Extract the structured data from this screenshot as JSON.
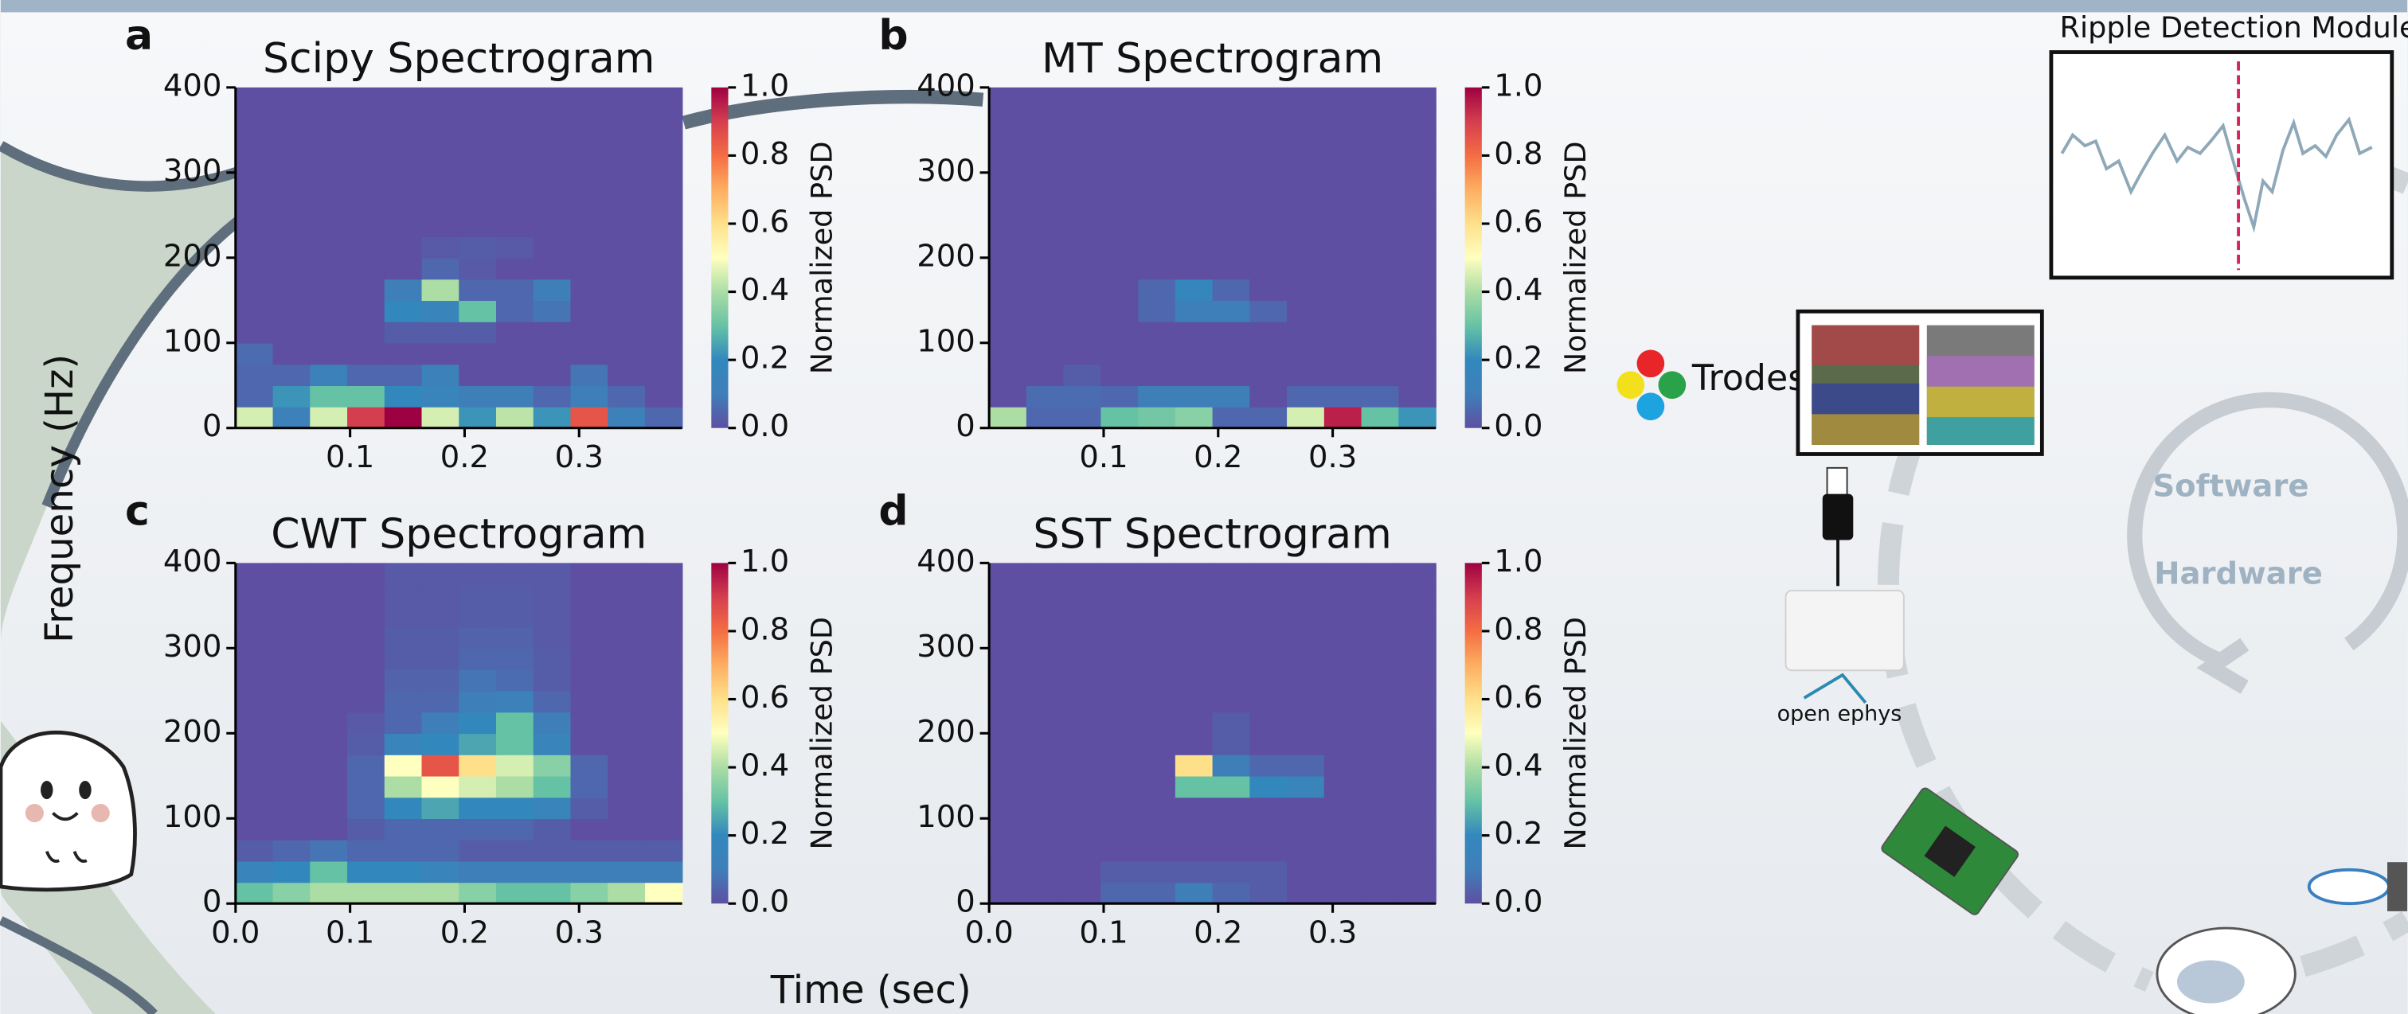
{
  "chart_data": [
    {
      "type": "heatmap",
      "panel": "a",
      "title": "Scipy Spectrogram",
      "colormap": "Spectral_r",
      "xlim": [
        0,
        0.39
      ],
      "ylim": [
        0,
        400
      ],
      "xticks": [
        0.1,
        0.2,
        0.3
      ],
      "yticks": [
        0,
        100,
        200,
        300,
        400
      ],
      "zlim": [
        0,
        1
      ],
      "zticks": [
        {
          "value": 0,
          "label": "0.0"
        },
        0.2,
        0.4,
        0.6,
        0.8,
        {
          "value": 1,
          "label": "1.0"
        }
      ],
      "colorbar_label": "Normalized PSD",
      "z": [
        [
          0.45,
          0.12,
          0.45,
          0.9,
          1.0,
          0.45,
          0.22,
          0.42,
          0.22,
          0.85,
          0.12,
          0.05
        ],
        [
          0.05,
          0.22,
          0.3,
          0.3,
          0.2,
          0.15,
          0.1,
          0.1,
          0.05,
          0.1,
          0.05,
          0
        ],
        [
          0.05,
          0.05,
          0.12,
          0.05,
          0.05,
          0.12,
          0,
          0,
          0,
          0.08,
          0,
          0
        ],
        [
          0.06,
          0,
          0,
          0,
          0,
          0,
          0,
          0,
          0,
          0,
          0,
          0
        ],
        [
          0,
          0,
          0,
          0,
          0.03,
          0.03,
          0.03,
          0,
          0,
          0,
          0,
          0
        ],
        [
          0,
          0,
          0,
          0,
          0.2,
          0.15,
          0.3,
          0.05,
          0.08,
          0,
          0,
          0
        ],
        [
          0,
          0,
          0,
          0,
          0.1,
          0.4,
          0.05,
          0.05,
          0.1,
          0,
          0,
          0
        ],
        [
          0,
          0,
          0,
          0,
          0,
          0.05,
          0.02,
          0,
          0,
          0,
          0,
          0
        ],
        [
          0,
          0,
          0,
          0,
          0,
          0.02,
          0.03,
          0.02,
          0,
          0,
          0,
          0
        ],
        [
          0,
          0,
          0,
          0,
          0,
          0,
          0,
          0,
          0,
          0,
          0,
          0
        ],
        [
          0,
          0,
          0,
          0,
          0,
          0,
          0,
          0,
          0,
          0,
          0,
          0
        ],
        [
          0,
          0,
          0,
          0,
          0,
          0,
          0,
          0,
          0,
          0,
          0,
          0
        ],
        [
          0,
          0,
          0,
          0,
          0,
          0,
          0,
          0,
          0,
          0,
          0,
          0
        ],
        [
          0,
          0,
          0,
          0,
          0,
          0,
          0,
          0,
          0,
          0,
          0,
          0
        ],
        [
          0,
          0,
          0,
          0,
          0,
          0,
          0,
          0,
          0,
          0,
          0,
          0
        ],
        [
          0,
          0,
          0,
          0,
          0,
          0,
          0,
          0,
          0,
          0,
          0,
          0
        ]
      ]
    },
    {
      "type": "heatmap",
      "panel": "b",
      "title": "MT Spectrogram",
      "colormap": "Spectral_r",
      "xlim": [
        0,
        0.39
      ],
      "ylim": [
        0,
        400
      ],
      "xticks": [
        0.1,
        0.2,
        0.3
      ],
      "yticks": [
        0,
        100,
        200,
        300,
        400
      ],
      "zlim": [
        0,
        1
      ],
      "zticks": [
        {
          "value": 0,
          "label": "0.0"
        },
        0.2,
        0.4,
        0.6,
        0.8,
        {
          "value": 1,
          "label": "1.0"
        }
      ],
      "colorbar_label": "Normalized PSD",
      "z": [
        [
          0.4,
          0.05,
          0.05,
          0.3,
          0.32,
          0.35,
          0.05,
          0.05,
          0.45,
          0.95,
          0.3,
          0.22
        ],
        [
          0,
          0.06,
          0.06,
          0.05,
          0.1,
          0.1,
          0.1,
          0,
          0.05,
          0.05,
          0.05,
          0
        ],
        [
          0,
          0,
          0.03,
          0,
          0,
          0,
          0,
          0,
          0,
          0,
          0,
          0
        ],
        [
          0,
          0,
          0,
          0,
          0,
          0,
          0,
          0,
          0,
          0,
          0,
          0
        ],
        [
          0,
          0,
          0,
          0,
          0,
          0,
          0,
          0,
          0,
          0,
          0,
          0
        ],
        [
          0,
          0,
          0,
          0,
          0.05,
          0.1,
          0.1,
          0.05,
          0,
          0,
          0,
          0
        ],
        [
          0,
          0,
          0,
          0,
          0.05,
          0.18,
          0.05,
          0,
          0,
          0,
          0,
          0
        ],
        [
          0,
          0,
          0,
          0,
          0,
          0,
          0,
          0,
          0,
          0,
          0,
          0
        ],
        [
          0,
          0,
          0,
          0,
          0,
          0,
          0,
          0,
          0,
          0,
          0,
          0
        ],
        [
          0,
          0,
          0,
          0,
          0,
          0,
          0,
          0,
          0,
          0,
          0,
          0
        ],
        [
          0,
          0,
          0,
          0,
          0,
          0,
          0,
          0,
          0,
          0,
          0,
          0
        ],
        [
          0,
          0,
          0,
          0,
          0,
          0,
          0,
          0,
          0,
          0,
          0,
          0
        ],
        [
          0,
          0,
          0,
          0,
          0,
          0,
          0,
          0,
          0,
          0,
          0,
          0
        ],
        [
          0,
          0,
          0,
          0,
          0,
          0,
          0,
          0,
          0,
          0,
          0,
          0
        ],
        [
          0,
          0,
          0,
          0,
          0,
          0,
          0,
          0,
          0,
          0,
          0,
          0
        ],
        [
          0,
          0,
          0,
          0,
          0,
          0,
          0,
          0,
          0,
          0,
          0,
          0
        ]
      ]
    },
    {
      "type": "heatmap",
      "panel": "c",
      "title": "CWT Spectrogram",
      "colormap": "Spectral_r",
      "xlim": [
        0,
        0.39
      ],
      "ylim": [
        0,
        400
      ],
      "xticks": [
        {
          "value": 0,
          "label": "0.0"
        },
        0.1,
        0.2,
        0.3
      ],
      "yticks": [
        0,
        100,
        200,
        300,
        400
      ],
      "zlim": [
        0,
        1
      ],
      "zticks": [
        {
          "value": 0,
          "label": "0.0"
        },
        0.2,
        0.4,
        0.6,
        0.8,
        {
          "value": 1,
          "label": "1.0"
        }
      ],
      "colorbar_label": "Normalized PSD",
      "z": [
        [
          0.3,
          0.35,
          0.4,
          0.4,
          0.4,
          0.4,
          0.35,
          0.3,
          0.3,
          0.35,
          0.4,
          0.5
        ],
        [
          0.15,
          0.2,
          0.3,
          0.2,
          0.2,
          0.15,
          0.1,
          0.1,
          0.1,
          0.1,
          0.1,
          0.1
        ],
        [
          0.03,
          0.05,
          0.08,
          0.05,
          0.05,
          0.05,
          0.03,
          0.03,
          0.03,
          0.03,
          0.03,
          0.03
        ],
        [
          0,
          0,
          0,
          0.03,
          0.05,
          0.05,
          0.05,
          0.05,
          0.03,
          0,
          0,
          0
        ],
        [
          0,
          0,
          0,
          0.05,
          0.2,
          0.25,
          0.2,
          0.2,
          0.15,
          0.03,
          0,
          0
        ],
        [
          0,
          0,
          0,
          0.05,
          0.4,
          0.5,
          0.45,
          0.4,
          0.3,
          0.05,
          0,
          0
        ],
        [
          0,
          0,
          0,
          0.05,
          0.5,
          0.85,
          0.6,
          0.45,
          0.35,
          0.05,
          0,
          0
        ],
        [
          0,
          0,
          0,
          0.03,
          0.15,
          0.2,
          0.25,
          0.3,
          0.15,
          0,
          0,
          0
        ],
        [
          0,
          0,
          0,
          0.02,
          0.05,
          0.1,
          0.2,
          0.3,
          0.1,
          0,
          0,
          0
        ],
        [
          0,
          0,
          0,
          0,
          0.05,
          0.05,
          0.1,
          0.12,
          0.05,
          0,
          0,
          0
        ],
        [
          0,
          0,
          0,
          0,
          0.04,
          0.04,
          0.08,
          0.06,
          0.03,
          0,
          0,
          0
        ],
        [
          0,
          0,
          0,
          0,
          0.03,
          0.03,
          0.05,
          0.05,
          0.03,
          0,
          0,
          0
        ],
        [
          0,
          0,
          0,
          0,
          0.03,
          0.03,
          0.04,
          0.04,
          0.02,
          0,
          0,
          0
        ],
        [
          0,
          0,
          0,
          0,
          0.02,
          0.02,
          0.03,
          0.03,
          0.02,
          0,
          0,
          0
        ],
        [
          0,
          0,
          0,
          0,
          0.02,
          0.02,
          0.03,
          0.03,
          0.02,
          0,
          0,
          0
        ],
        [
          0,
          0,
          0,
          0,
          0.02,
          0.02,
          0.02,
          0.02,
          0.02,
          0,
          0,
          0
        ]
      ]
    },
    {
      "type": "heatmap",
      "panel": "d",
      "title": "SST Spectrogram",
      "colormap": "Spectral_r",
      "xlim": [
        0,
        0.39
      ],
      "ylim": [
        0,
        400
      ],
      "xticks": [
        {
          "value": 0,
          "label": "0.0"
        },
        0.1,
        0.2,
        0.3
      ],
      "yticks": [
        0,
        100,
        200,
        300,
        400
      ],
      "zlim": [
        0,
        1
      ],
      "zticks": [
        {
          "value": 0,
          "label": "0.0"
        },
        0.2,
        0.4,
        0.6,
        0.8,
        {
          "value": 1,
          "label": "1.0"
        }
      ],
      "colorbar_label": "Normalized PSD",
      "z": [
        [
          0,
          0,
          0,
          0.05,
          0.05,
          0.1,
          0.05,
          0.03,
          0,
          0,
          0,
          0
        ],
        [
          0,
          0,
          0,
          0.03,
          0.03,
          0.03,
          0.03,
          0.03,
          0,
          0,
          0,
          0
        ],
        [
          0,
          0,
          0,
          0,
          0,
          0,
          0,
          0,
          0,
          0,
          0,
          0
        ],
        [
          0,
          0,
          0,
          0,
          0,
          0,
          0,
          0,
          0,
          0,
          0,
          0
        ],
        [
          0,
          0,
          0,
          0,
          0,
          0,
          0,
          0,
          0,
          0,
          0,
          0
        ],
        [
          0,
          0,
          0,
          0,
          0,
          0.3,
          0.3,
          0.2,
          0.15,
          0,
          0,
          0
        ],
        [
          0,
          0,
          0,
          0,
          0,
          0.6,
          0.1,
          0.05,
          0.05,
          0,
          0,
          0
        ],
        [
          0,
          0,
          0,
          0,
          0,
          0,
          0.03,
          0,
          0,
          0,
          0,
          0
        ],
        [
          0,
          0,
          0,
          0,
          0,
          0,
          0.03,
          0,
          0,
          0,
          0,
          0
        ],
        [
          0,
          0,
          0,
          0,
          0,
          0,
          0,
          0,
          0,
          0,
          0,
          0
        ],
        [
          0,
          0,
          0,
          0,
          0,
          0,
          0,
          0,
          0,
          0,
          0,
          0
        ],
        [
          0,
          0,
          0,
          0,
          0,
          0,
          0,
          0,
          0,
          0,
          0,
          0
        ],
        [
          0,
          0,
          0,
          0,
          0,
          0,
          0,
          0,
          0,
          0,
          0,
          0
        ],
        [
          0,
          0,
          0,
          0,
          0,
          0,
          0,
          0,
          0,
          0,
          0,
          0
        ],
        [
          0,
          0,
          0,
          0,
          0,
          0,
          0,
          0,
          0,
          0,
          0,
          0
        ],
        [
          0,
          0,
          0,
          0,
          0,
          0,
          0,
          0,
          0,
          0,
          0,
          0
        ]
      ]
    }
  ],
  "shared": {
    "ylabel": "Frequency (Hz)",
    "xlabel": "Time (sec)"
  },
  "diagram": {
    "module_title": "Ripple Detection Module",
    "trodes": "Trodes",
    "software": "Software",
    "hardware": "Hardware",
    "open_ephys": "open ephys"
  }
}
